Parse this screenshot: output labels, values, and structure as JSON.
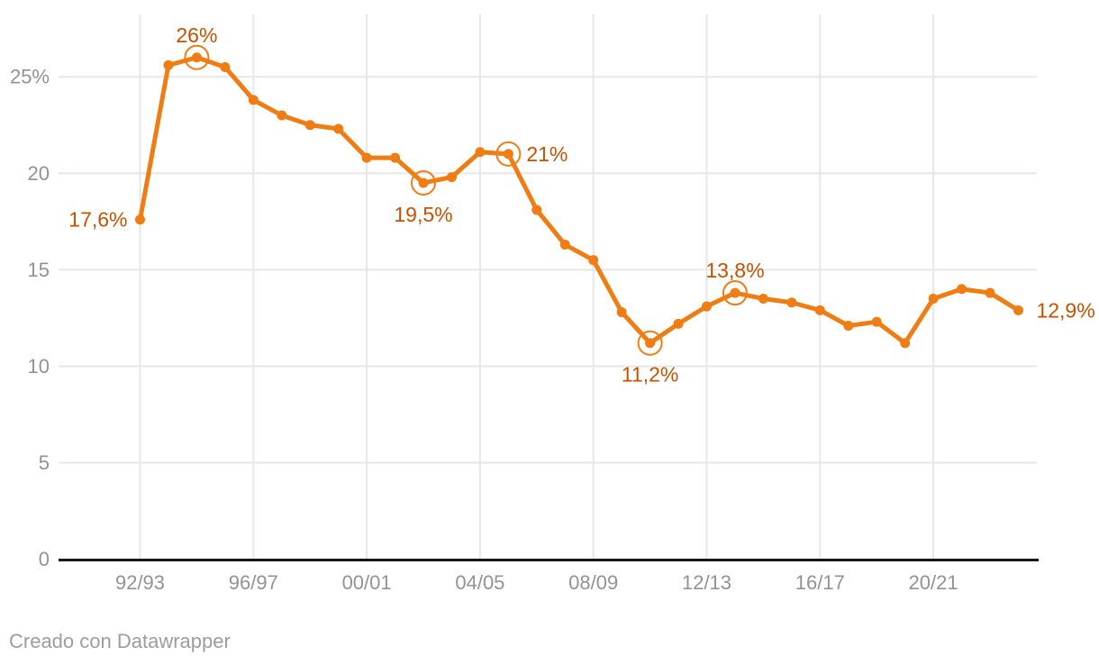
{
  "chart_data": {
    "type": "line",
    "categories": [
      "92/93",
      "93/94",
      "94/95",
      "95/96",
      "96/97",
      "97/98",
      "98/99",
      "99/00",
      "00/01",
      "01/02",
      "02/03",
      "03/04",
      "04/05",
      "05/06",
      "06/07",
      "07/08",
      "08/09",
      "09/10",
      "10/11",
      "11/12",
      "12/13",
      "13/14",
      "14/15",
      "15/16",
      "16/17",
      "17/18",
      "18/19",
      "19/20",
      "20/21",
      "21/22",
      "22/23",
      "23/24"
    ],
    "values": [
      17.6,
      25.6,
      26,
      25.5,
      23.8,
      23,
      22.5,
      22.3,
      20.8,
      20.8,
      19.5,
      19.8,
      21.1,
      21,
      18.1,
      16.3,
      15.5,
      12.8,
      11.2,
      12.2,
      13.1,
      13.8,
      13.5,
      13.3,
      12.9,
      12.1,
      12.3,
      11.2,
      13.5,
      14,
      13.8,
      12.9
    ],
    "unit": "%",
    "x_ticks": [
      {
        "index": 0,
        "label": "92/93"
      },
      {
        "index": 4,
        "label": "96/97"
      },
      {
        "index": 8,
        "label": "00/01"
      },
      {
        "index": 12,
        "label": "04/05"
      },
      {
        "index": 16,
        "label": "08/09"
      },
      {
        "index": 20,
        "label": "12/13"
      },
      {
        "index": 24,
        "label": "16/17"
      },
      {
        "index": 28,
        "label": "20/21"
      }
    ],
    "y_ticks": [
      {
        "value": 25,
        "label": "25%"
      },
      {
        "value": 20,
        "label": "20"
      },
      {
        "value": 15,
        "label": "15"
      },
      {
        "value": 10,
        "label": "10"
      },
      {
        "value": 5,
        "label": "5"
      },
      {
        "value": 0,
        "label": "0"
      }
    ],
    "ylim": [
      0,
      28.2
    ],
    "grid": true,
    "legend": "none",
    "annotations": [
      {
        "index": 0,
        "label": "17,6%",
        "placement": "left",
        "circled": false
      },
      {
        "index": 2,
        "label": "26%",
        "placement": "above",
        "circled": true
      },
      {
        "index": 10,
        "label": "19,5%",
        "placement": "below",
        "circled": true
      },
      {
        "index": 13,
        "label": "21%",
        "placement": "right",
        "circled": true
      },
      {
        "index": 18,
        "label": "11,2%",
        "placement": "below",
        "circled": true
      },
      {
        "index": 21,
        "label": "13,8%",
        "placement": "above",
        "circled": true
      },
      {
        "index": 31,
        "label": "12,9%",
        "placement": "right",
        "circled": false
      }
    ],
    "colors": {
      "line": "#F07D13",
      "data_label": "#C55200",
      "axis_line": "#161616",
      "gridline": "#E7E7E7",
      "tick_label": "#939393"
    }
  },
  "footer": {
    "credit": "Creado con Datawrapper",
    "credit_color": "#9D9D9D"
  }
}
